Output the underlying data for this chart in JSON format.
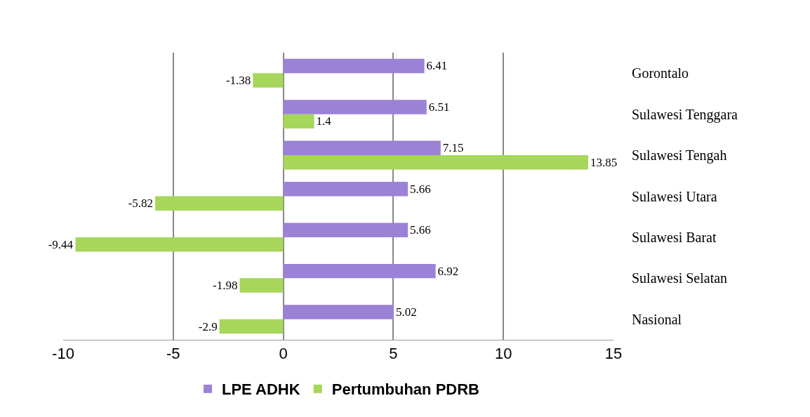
{
  "chart_data": {
    "type": "bar",
    "orientation": "horizontal",
    "categories": [
      "Gorontalo",
      "Sulawesi Tenggara",
      "Sulawesi Tengah",
      "Sulawesi Utara",
      "Sulawesi Barat",
      "Sulawesi Selatan",
      "Nasional"
    ],
    "series": [
      {
        "name": "LPE ADHK",
        "color": "#9b82d6",
        "values": [
          6.41,
          6.51,
          7.15,
          5.66,
          5.66,
          6.92,
          5.02
        ]
      },
      {
        "name": "Pertumbuhan PDRB",
        "color": "#a6d65a",
        "values": [
          -1.38,
          1.4,
          13.85,
          -5.82,
          -9.44,
          -1.98,
          -2.9
        ]
      }
    ],
    "xlim": [
      -10,
      15
    ],
    "xticks": [
      -10,
      -5,
      0,
      5,
      10,
      15
    ],
    "grid": "x",
    "legend": "bottom",
    "data_labels": true
  }
}
